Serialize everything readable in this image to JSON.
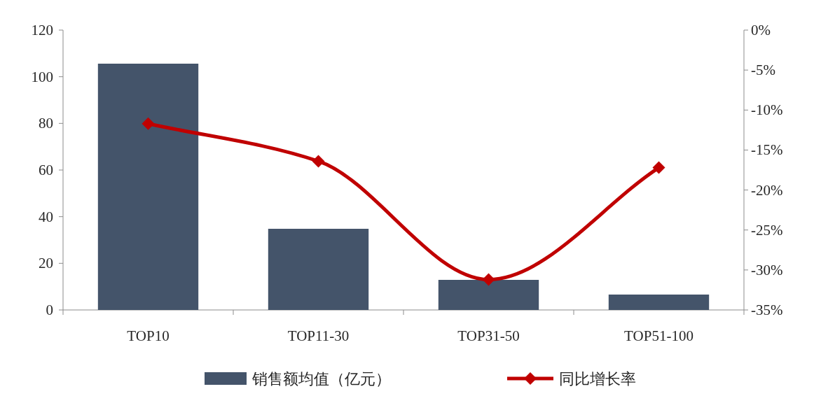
{
  "chart_data": {
    "type": "bar",
    "categories": [
      "TOP10",
      "TOP11-30",
      "TOP31-50",
      "TOP51-100"
    ],
    "series": [
      {
        "name": "销售额均值（亿元）",
        "color": "#44546a",
        "values": [
          105.6,
          34.8,
          12.9,
          6.6
        ]
      },
      {
        "name": "同比增长率",
        "type": "line",
        "axis": "y2",
        "color": "#c00000",
        "values": [
          -11.7,
          -16.4,
          -31.2,
          -17.2
        ]
      }
    ],
    "ylim": [
      0,
      120
    ],
    "yticks": [
      0,
      20,
      40,
      60,
      80,
      100,
      120
    ],
    "y2lim": [
      -35,
      0
    ],
    "y2ticks": [
      {
        "value": 0,
        "label": "0%"
      },
      {
        "value": -5,
        "label": "-5%"
      },
      {
        "value": -10,
        "label": "-10%"
      },
      {
        "value": -15,
        "label": "-15%"
      },
      {
        "value": -20,
        "label": "-20%"
      },
      {
        "value": -25,
        "label": "-25%"
      },
      {
        "value": -30,
        "label": "-30%"
      },
      {
        "value": -35,
        "label": "-35%"
      }
    ],
    "marker": "diamond",
    "line_style": "solid",
    "legend": "bottom",
    "grid": false
  }
}
